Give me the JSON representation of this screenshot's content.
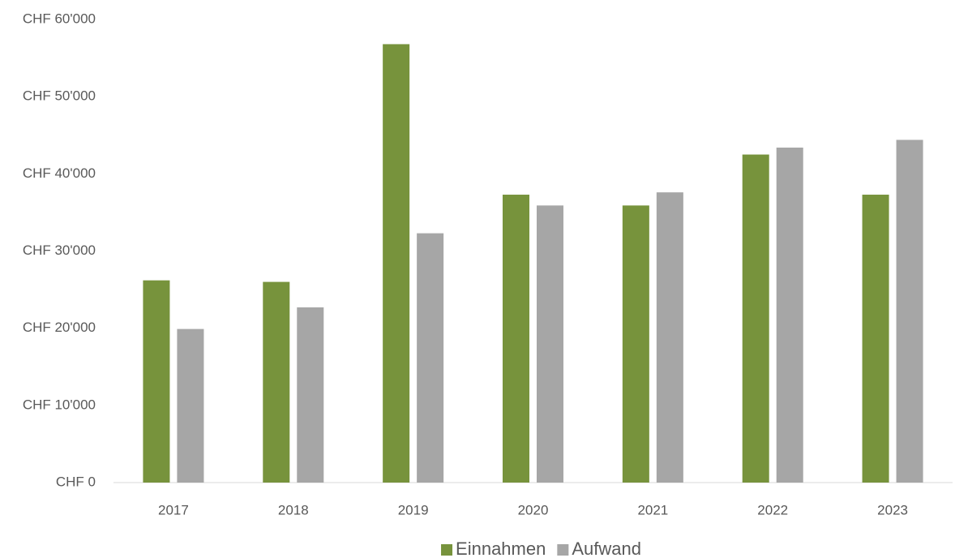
{
  "chart_data": {
    "type": "bar",
    "categories": [
      "2017",
      "2018",
      "2019",
      "2020",
      "2021",
      "2022",
      "2023"
    ],
    "series": [
      {
        "name": "Einnahmen",
        "color": "#77933c",
        "values": [
          26200,
          26000,
          56800,
          37300,
          35900,
          42500,
          37300
        ]
      },
      {
        "name": "Aufwand",
        "color": "#a6a6a6",
        "values": [
          19900,
          22700,
          32300,
          35900,
          37600,
          43400,
          44400
        ]
      }
    ],
    "ylim": [
      0,
      60000
    ],
    "yticks": [
      {
        "value": 0,
        "label": "CHF 0"
      },
      {
        "value": 10000,
        "label": "CHF 10'000"
      },
      {
        "value": 20000,
        "label": "CHF 20'000"
      },
      {
        "value": 30000,
        "label": "CHF 30'000"
      },
      {
        "value": 40000,
        "label": "CHF 40'000"
      },
      {
        "value": 50000,
        "label": "CHF 50'000"
      },
      {
        "value": 60000,
        "label": "CHF 60'000"
      }
    ],
    "grid": false,
    "legend": "bottom"
  }
}
